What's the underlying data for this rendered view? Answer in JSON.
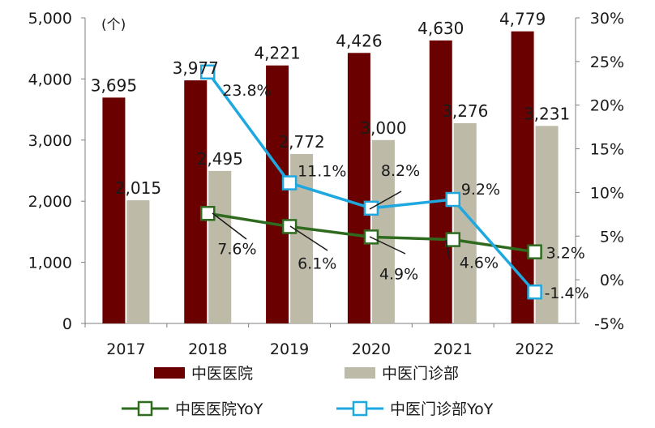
{
  "chart_data": {
    "type": "bar+line",
    "unit_label": "(个)",
    "categories": [
      "2017",
      "2018",
      "2019",
      "2020",
      "2021",
      "2022"
    ],
    "y_left": {
      "min": 0,
      "max": 5000,
      "ticks": [
        "0",
        "1,000",
        "2,000",
        "3,000",
        "4,000",
        "5,000"
      ]
    },
    "y_right": {
      "min": -5,
      "max": 30,
      "ticks": [
        "-5%",
        "0%",
        "5%",
        "10%",
        "15%",
        "20%",
        "25%",
        "30%"
      ]
    },
    "bar_series": [
      {
        "name": "中医医院",
        "color": "#6b0000",
        "values": [
          3695,
          3977,
          4221,
          4426,
          4630,
          4779
        ],
        "labels": [
          "3,695",
          "3,977",
          "4,221",
          "4,426",
          "4,630",
          "4,779"
        ]
      },
      {
        "name": "中医门诊部",
        "color": "#bdbaa8",
        "values": [
          2015,
          2495,
          2772,
          3000,
          3276,
          3231
        ],
        "labels": [
          "2,015",
          "2,495",
          "2,772",
          "3,000",
          "3,276",
          "3,231"
        ]
      }
    ],
    "line_series": [
      {
        "name": "中医医院YoY",
        "color": "#2e6b1f",
        "values": [
          null,
          7.6,
          6.1,
          4.9,
          4.6,
          3.2
        ],
        "labels": [
          null,
          "7.6%",
          "6.1%",
          "4.9%",
          "4.6%",
          "3.2%"
        ]
      },
      {
        "name": "中医门诊部YoY",
        "color": "#1fa8e0",
        "values": [
          null,
          23.8,
          11.1,
          8.2,
          9.2,
          -1.4
        ],
        "labels": [
          null,
          "23.8%",
          "11.1%",
          "8.2%",
          "9.2%",
          "-1.4%"
        ]
      }
    ],
    "legend": "bottom",
    "grid": false
  }
}
